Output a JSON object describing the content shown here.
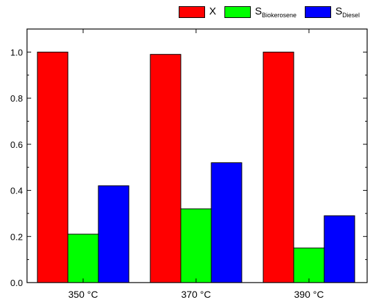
{
  "chart_data": {
    "type": "bar",
    "categories": [
      "350 °C",
      "370 °C",
      "390 °C"
    ],
    "series": [
      {
        "name": "X",
        "sub": "",
        "color": "#ff0000",
        "values": [
          1.0,
          0.99,
          1.0
        ]
      },
      {
        "name": "S",
        "sub": "Biokerosene",
        "color": "#00ff00",
        "values": [
          0.21,
          0.32,
          0.15
        ]
      },
      {
        "name": "S",
        "sub": "Diesel",
        "color": "#0000ff",
        "values": [
          0.42,
          0.52,
          0.29
        ]
      }
    ],
    "yticks": [
      "0.0",
      "0.2",
      "0.4",
      "0.6",
      "0.8",
      "1.0"
    ],
    "ylim": [
      0,
      1.1
    ],
    "legend_position": "top-right",
    "grid": false
  }
}
